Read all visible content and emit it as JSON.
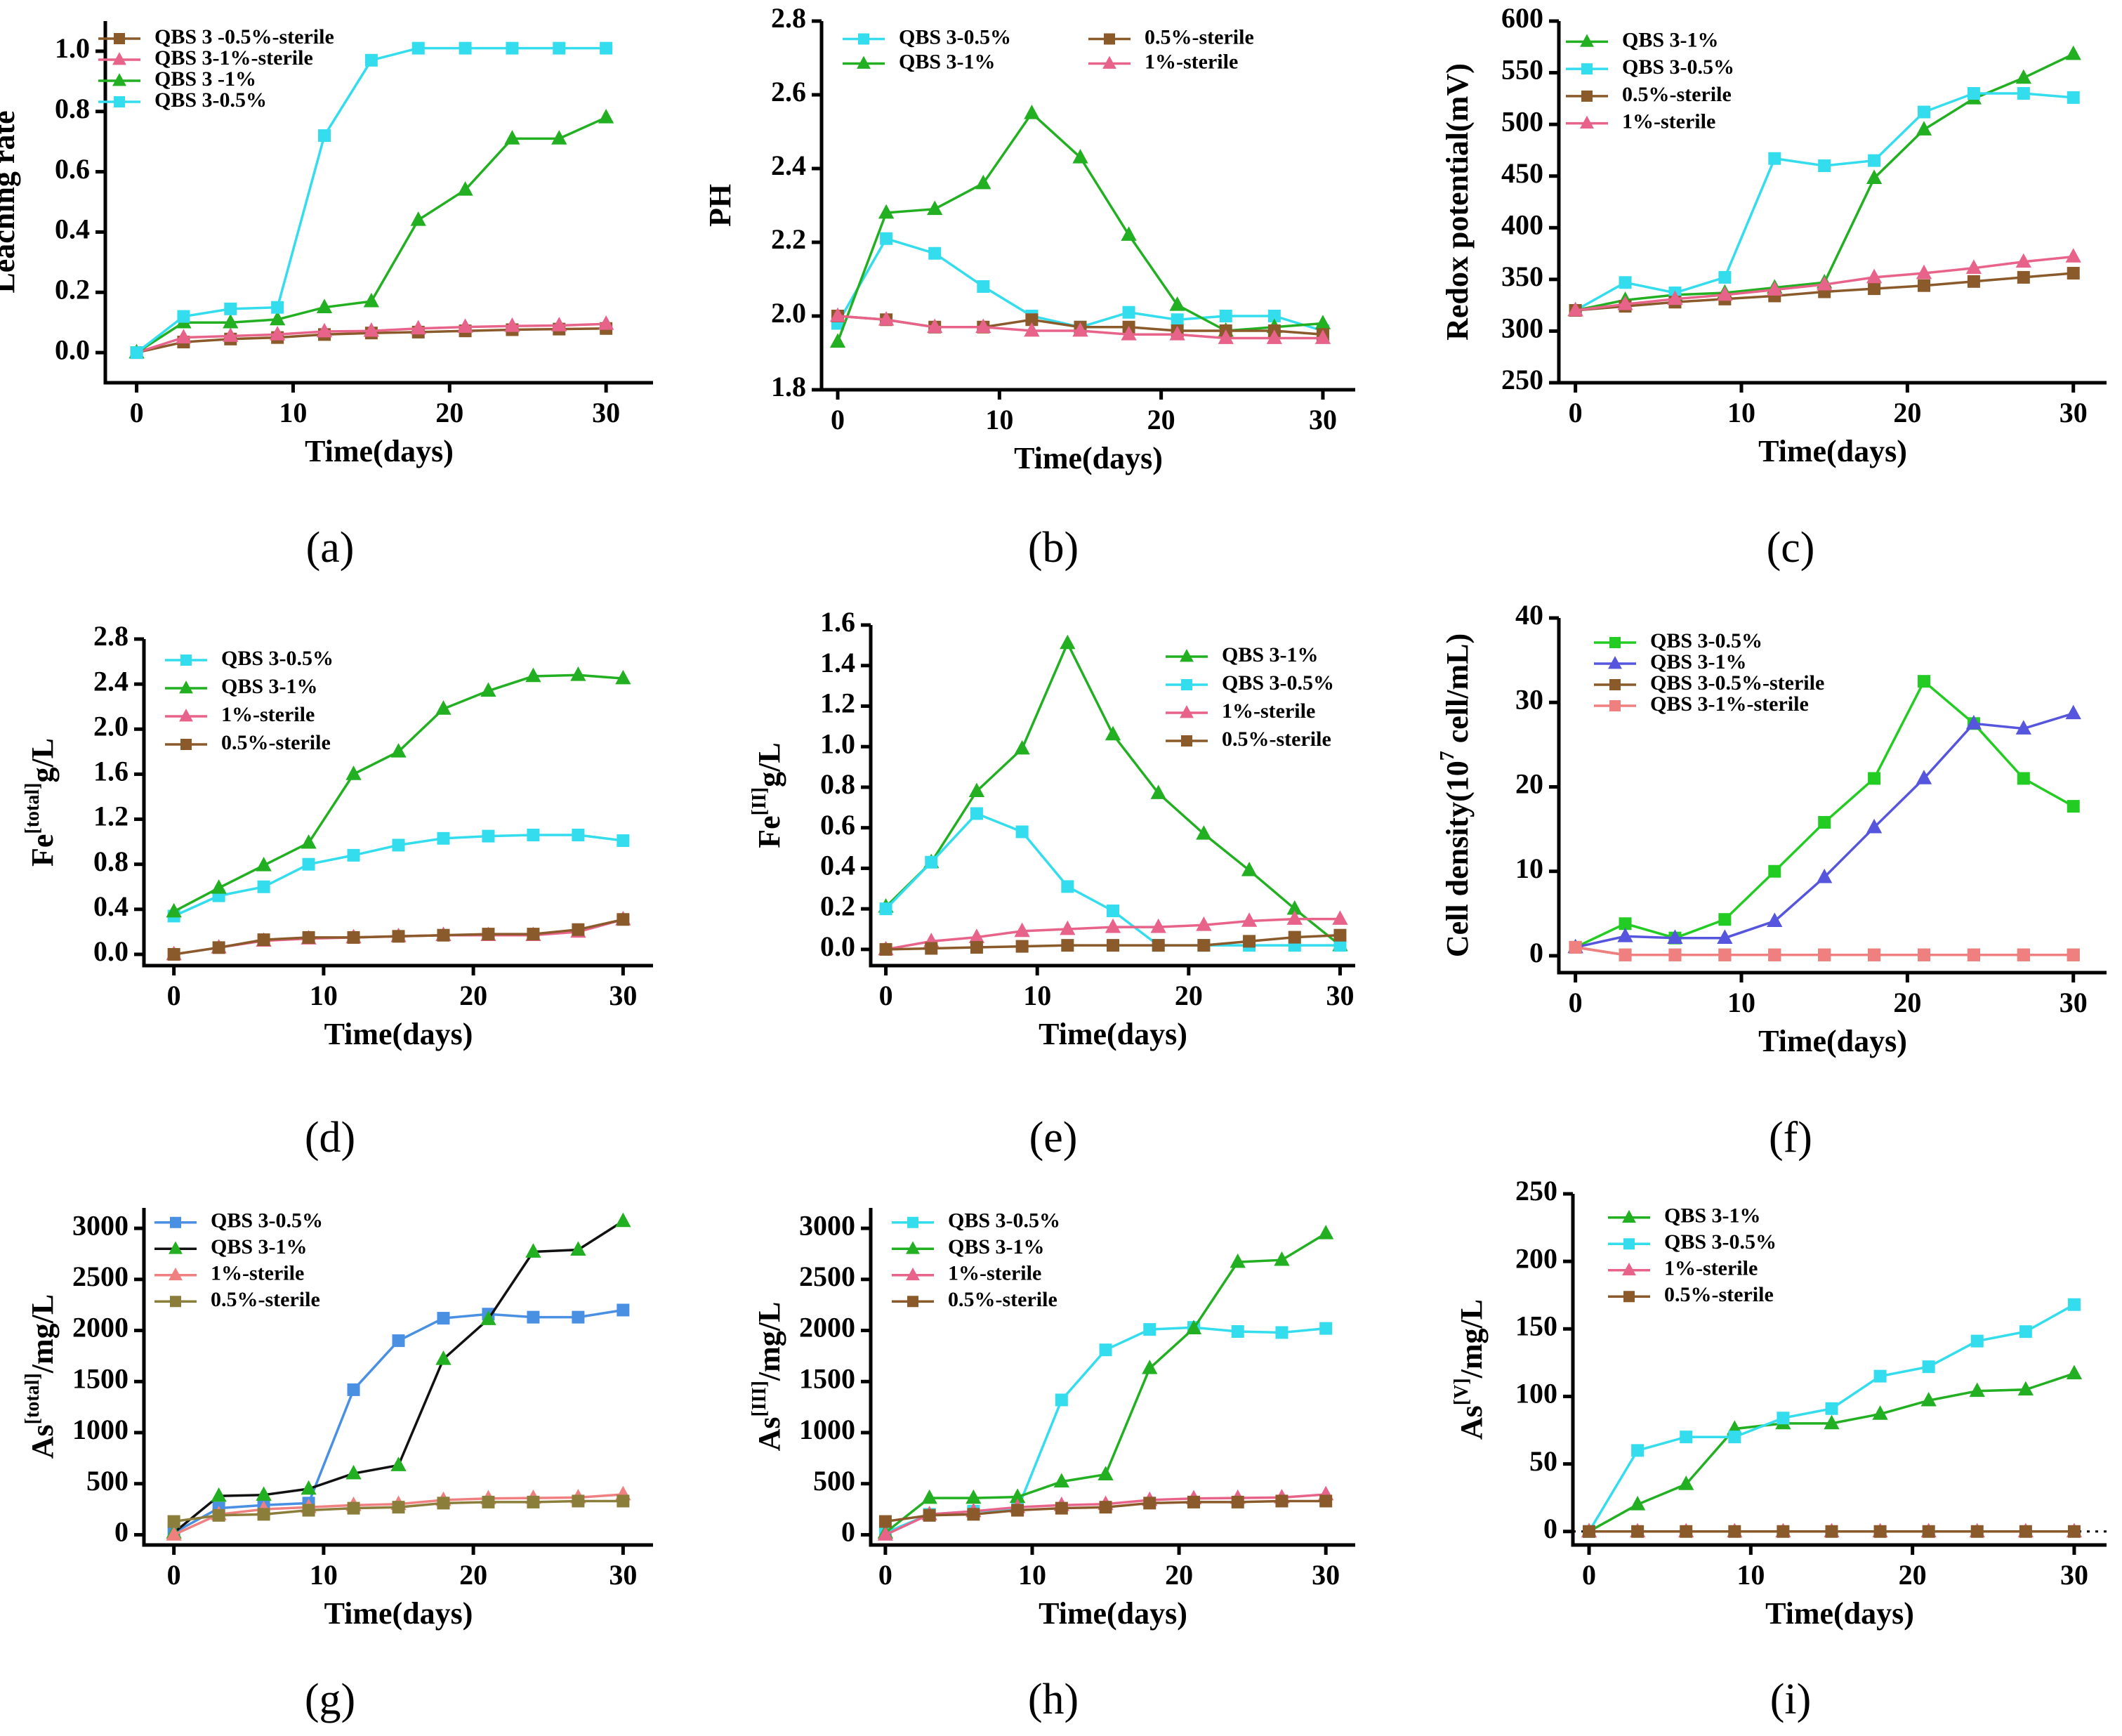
{
  "figure": {
    "panels": [
      {
        "label": "(a)",
        "x_title": "Time(days)",
        "y_title": "Leaching rate"
      },
      {
        "label": "(b)",
        "x_title": "Time(days)",
        "y_title": "PH"
      },
      {
        "label": "(c)",
        "x_title": "Time(days)",
        "y_title": "Redox potential(mV)"
      },
      {
        "label": "(d)",
        "x_title": "Time(days)",
        "y_title": "Fe[total]g/L"
      },
      {
        "label": "(e)",
        "x_title": "Time(days)",
        "y_title": "Fe[II]g/L"
      },
      {
        "label": "(f)",
        "x_title": "Time(days)",
        "y_title": "Cell density(10^7 cell/mL)"
      },
      {
        "label": "(g)",
        "x_title": "Time(days)",
        "y_title": "As[total]/mg/L"
      },
      {
        "label": "(h)",
        "x_title": "Time(days)",
        "y_title": "As[III]/mg/L"
      },
      {
        "label": "(i)",
        "x_title": "Time(days)",
        "y_title": "As[V]/mg/L"
      }
    ]
  },
  "chart_data": [
    {
      "type": "line",
      "panel": "a",
      "xlabel": "Time(days)",
      "ylabel": "Leaching rate",
      "xlim": [
        -2,
        33
      ],
      "xticks": [
        0,
        10,
        20,
        30
      ],
      "ylim": [
        -0.1,
        1.1
      ],
      "yticks": [
        0.0,
        0.2,
        0.4,
        0.6,
        0.8,
        1.0
      ],
      "ytick_format": 1,
      "legend_placement": "top-left",
      "x": [
        0,
        3,
        6,
        9,
        12,
        15,
        18,
        21,
        24,
        27,
        30
      ],
      "series": [
        {
          "name": "QBS 3 -0.5%-sterile",
          "color": "#8B5A2B",
          "marker": "square",
          "values": [
            0,
            0.035,
            0.045,
            0.05,
            0.06,
            0.065,
            0.068,
            0.072,
            0.076,
            0.078,
            0.08
          ]
        },
        {
          "name": "QBS 3-1%-sterile",
          "color": "#E8638A",
          "marker": "triangle",
          "values": [
            0,
            0.05,
            0.055,
            0.06,
            0.07,
            0.072,
            0.08,
            0.085,
            0.088,
            0.09,
            0.095
          ]
        },
        {
          "name": "QBS 3 -1%",
          "color": "#22B022",
          "marker": "triangle",
          "values": [
            0,
            0.1,
            0.1,
            0.11,
            0.15,
            0.17,
            0.44,
            0.54,
            0.71,
            0.71,
            0.78
          ]
        },
        {
          "name": "QBS 3-0.5%",
          "color": "#33DDEE",
          "marker": "square",
          "values": [
            0,
            0.12,
            0.145,
            0.15,
            0.72,
            0.97,
            1.01,
            1.01,
            1.01,
            1.01,
            1.01
          ]
        }
      ]
    },
    {
      "type": "line",
      "panel": "b",
      "xlabel": "Time(days)",
      "ylabel": "PH",
      "xlim": [
        -1,
        32
      ],
      "xticks": [
        0,
        10,
        20,
        30
      ],
      "ylim": [
        1.8,
        2.8
      ],
      "yticks": [
        1.8,
        2.0,
        2.2,
        2.4,
        2.6,
        2.8
      ],
      "ytick_format": 1,
      "legend_placement": "top (two columns)",
      "x": [
        0,
        3,
        6,
        9,
        12,
        15,
        18,
        21,
        24,
        27,
        30
      ],
      "series": [
        {
          "name": "QBS 3-0.5%",
          "color": "#33DDEE",
          "marker": "square",
          "values": [
            1.98,
            2.21,
            2.17,
            2.08,
            2.0,
            1.97,
            2.01,
            1.99,
            2.0,
            2.0,
            1.96
          ]
        },
        {
          "name": "QBS 3-1%",
          "color": "#22B022",
          "marker": "triangle",
          "values": [
            1.93,
            2.28,
            2.29,
            2.36,
            2.55,
            2.43,
            2.22,
            2.03,
            1.96,
            1.97,
            1.98
          ]
        },
        {
          "name": "0.5%-sterile",
          "color": "#8B5A2B",
          "marker": "square",
          "values": [
            2.0,
            1.99,
            1.97,
            1.97,
            1.99,
            1.97,
            1.97,
            1.96,
            1.96,
            1.96,
            1.95
          ]
        },
        {
          "name": "1%-sterile",
          "color": "#E8638A",
          "marker": "triangle",
          "values": [
            2.0,
            1.99,
            1.97,
            1.97,
            1.96,
            1.96,
            1.95,
            1.95,
            1.94,
            1.94,
            1.94
          ]
        }
      ]
    },
    {
      "type": "line",
      "panel": "c",
      "xlabel": "Time(days)",
      "ylabel": "Redox potential(mV)",
      "xlim": [
        -1,
        32
      ],
      "xticks": [
        0,
        10,
        20,
        30
      ],
      "ylim": [
        250,
        600
      ],
      "yticks": [
        250,
        300,
        350,
        400,
        450,
        500,
        550,
        600
      ],
      "ytick_format": 0,
      "legend_placement": "top-left",
      "x": [
        0,
        3,
        6,
        9,
        12,
        15,
        18,
        21,
        24,
        27,
        30
      ],
      "series": [
        {
          "name": "QBS 3-1%",
          "color": "#22B022",
          "marker": "triangle",
          "values": [
            320,
            330,
            335,
            337,
            342,
            347,
            448,
            495,
            525,
            545,
            568
          ]
        },
        {
          "name": "QBS 3-0.5%",
          "color": "#33DDEE",
          "marker": "square",
          "values": [
            320,
            347,
            337,
            352,
            467,
            460,
            465,
            512,
            530,
            530,
            526
          ]
        },
        {
          "name": "0.5%-sterile",
          "color": "#8B5A2B",
          "marker": "square",
          "values": [
            320,
            324,
            328,
            331,
            334,
            338,
            341,
            344,
            348,
            352,
            356
          ]
        },
        {
          "name": "1%-sterile",
          "color": "#E8638A",
          "marker": "triangle",
          "values": [
            320,
            326,
            331,
            335,
            340,
            345,
            352,
            356,
            361,
            367,
            372
          ]
        }
      ]
    },
    {
      "type": "line",
      "panel": "d",
      "xlabel": "Time(days)",
      "ylabel": "Fe[total]g/L",
      "xlim": [
        -2,
        32
      ],
      "xticks": [
        0,
        10,
        20,
        30
      ],
      "ylim": [
        -0.1,
        2.8
      ],
      "yticks": [
        0.0,
        0.4,
        0.8,
        1.2,
        1.6,
        2.0,
        2.4,
        2.8
      ],
      "ytick_format": 1,
      "legend_placement": "top-left",
      "x": [
        0,
        3,
        6,
        9,
        12,
        15,
        18,
        21,
        24,
        27,
        30
      ],
      "series": [
        {
          "name": "QBS 3-0.5%",
          "color": "#33DDEE",
          "marker": "square",
          "values": [
            0.34,
            0.52,
            0.6,
            0.8,
            0.88,
            0.97,
            1.03,
            1.05,
            1.06,
            1.06,
            1.01
          ]
        },
        {
          "name": "QBS 3-1%",
          "color": "#22B022",
          "marker": "triangle",
          "values": [
            0.38,
            0.59,
            0.79,
            0.99,
            1.6,
            1.8,
            2.18,
            2.34,
            2.47,
            2.48,
            2.45
          ]
        },
        {
          "name": "1%-sterile",
          "color": "#E8638A",
          "marker": "triangle",
          "values": [
            0.0,
            0.06,
            0.12,
            0.14,
            0.15,
            0.16,
            0.17,
            0.17,
            0.17,
            0.2,
            0.31
          ]
        },
        {
          "name": "0.5%-sterile",
          "color": "#8B5A2B",
          "marker": "square",
          "values": [
            0.0,
            0.06,
            0.13,
            0.15,
            0.15,
            0.16,
            0.17,
            0.18,
            0.18,
            0.22,
            0.31
          ]
        }
      ]
    },
    {
      "type": "line",
      "panel": "e",
      "xlabel": "Time(days)",
      "ylabel": "Fe[II]g/L",
      "xlim": [
        -1,
        31
      ],
      "xticks": [
        0,
        10,
        20,
        30
      ],
      "ylim": [
        -0.08,
        1.6
      ],
      "yticks": [
        0.0,
        0.2,
        0.4,
        0.6,
        0.8,
        1.0,
        1.2,
        1.4,
        1.6
      ],
      "ytick_format": 1,
      "legend_placement": "top-right",
      "x": [
        0,
        3,
        6,
        9,
        12,
        15,
        18,
        21,
        24,
        27,
        30
      ],
      "series": [
        {
          "name": "QBS 3-1%",
          "color": "#22B022",
          "marker": "triangle",
          "values": [
            0.21,
            0.43,
            0.78,
            0.99,
            1.51,
            1.06,
            0.77,
            0.57,
            0.39,
            0.2,
            0.02
          ]
        },
        {
          "name": "QBS 3-0.5%",
          "color": "#33DDEE",
          "marker": "square",
          "values": [
            0.2,
            0.43,
            0.67,
            0.58,
            0.31,
            0.19,
            0.02,
            0.02,
            0.02,
            0.02,
            0.02
          ]
        },
        {
          "name": "1%-sterile",
          "color": "#E8638A",
          "marker": "triangle",
          "values": [
            0.0,
            0.04,
            0.06,
            0.09,
            0.1,
            0.11,
            0.11,
            0.12,
            0.14,
            0.15,
            0.15
          ]
        },
        {
          "name": "0.5%-sterile",
          "color": "#8B5A2B",
          "marker": "square",
          "values": [
            0.0,
            0.005,
            0.01,
            0.015,
            0.02,
            0.02,
            0.02,
            0.02,
            0.04,
            0.06,
            0.07
          ]
        }
      ]
    },
    {
      "type": "line",
      "panel": "f",
      "xlabel": "Time(days)",
      "ylabel": "Cell density(10^7 cell/mL)",
      "xlim": [
        -1,
        32
      ],
      "xticks": [
        0,
        10,
        20,
        30
      ],
      "ylim": [
        -2,
        40
      ],
      "yticks": [
        0,
        10,
        20,
        30,
        40
      ],
      "ytick_format": 0,
      "legend_placement": "top-left",
      "x": [
        0,
        3,
        6,
        9,
        12,
        15,
        18,
        21,
        24,
        27,
        30
      ],
      "series": [
        {
          "name": "QBS 3-0.5%",
          "color": "#22CC22",
          "marker": "square",
          "values": [
            1,
            3.8,
            2.1,
            4.3,
            10,
            15.8,
            21,
            32.5,
            27.5,
            21,
            17.7
          ]
        },
        {
          "name": "QBS 3-1%",
          "color": "#5555DD",
          "marker": "triangle",
          "values": [
            1,
            2.3,
            2.1,
            2.1,
            4.1,
            9.3,
            15.2,
            21,
            27.5,
            26.9,
            28.7
          ]
        },
        {
          "name": "QBS 3-0.5%-sterile",
          "color": "#8B5A2B",
          "marker": "square",
          "values": [
            1,
            0.1,
            0.1,
            0.1,
            0.1,
            0.1,
            0.1,
            0.1,
            0.1,
            0.1,
            0.1
          ]
        },
        {
          "name": "QBS 3-1%-sterile",
          "color": "#F08080",
          "marker": "square",
          "values": [
            1,
            0.1,
            0.1,
            0.1,
            0.1,
            0.1,
            0.1,
            0.1,
            0.1,
            0.1,
            0.1
          ]
        }
      ]
    },
    {
      "type": "line",
      "panel": "g",
      "xlabel": "Time(days)",
      "ylabel": "As[total]/mg/L",
      "xlim": [
        -2,
        32
      ],
      "xticks": [
        0,
        10,
        20,
        30
      ],
      "ylim": [
        -100,
        3200
      ],
      "yticks": [
        0,
        500,
        1000,
        1500,
        2000,
        2500,
        3000
      ],
      "ytick_format": 0,
      "legend_placement": "top-left",
      "x": [
        0,
        3,
        6,
        9,
        12,
        15,
        18,
        21,
        24,
        27,
        30
      ],
      "series": [
        {
          "name": "QBS 3-0.5%",
          "color": "#4A90E2",
          "marker": "square",
          "values": [
            20,
            260,
            290,
            310,
            1420,
            1900,
            2120,
            2160,
            2130,
            2130,
            2200
          ]
        },
        {
          "name": "QBS 3-1%",
          "color": "#111111",
          "line_color": "#111111",
          "marker_color": "#22B022",
          "marker": "triangle",
          "values": [
            20,
            380,
            390,
            450,
            600,
            680,
            1720,
            2110,
            2770,
            2790,
            3070
          ]
        },
        {
          "name": "1%-sterile",
          "color": "#F08080",
          "marker": "triangle",
          "values": [
            0,
            200,
            250,
            270,
            290,
            300,
            340,
            355,
            360,
            365,
            395
          ]
        },
        {
          "name": "0.5%-sterile",
          "color": "#8B7D3A",
          "marker": "square",
          "values": [
            130,
            190,
            200,
            240,
            260,
            270,
            310,
            320,
            320,
            330,
            330
          ]
        }
      ]
    },
    {
      "type": "line",
      "panel": "h",
      "xlabel": "Time(days)",
      "ylabel": "As[III]/mg/L",
      "xlim": [
        -1,
        32
      ],
      "xticks": [
        0,
        10,
        20,
        30
      ],
      "ylim": [
        -100,
        3200
      ],
      "yticks": [
        0,
        500,
        1000,
        1500,
        2000,
        2500,
        3000
      ],
      "ytick_format": 0,
      "legend_placement": "top-left",
      "x": [
        0,
        3,
        6,
        9,
        12,
        15,
        18,
        21,
        24,
        27,
        30
      ],
      "series": [
        {
          "name": "QBS 3-0.5%",
          "color": "#33DDEE",
          "marker": "square",
          "values": [
            20,
            200,
            230,
            250,
            1320,
            1810,
            2010,
            2030,
            1990,
            1980,
            2020
          ]
        },
        {
          "name": "QBS 3-1%",
          "color": "#22B022",
          "marker": "triangle",
          "values": [
            20,
            360,
            360,
            370,
            520,
            590,
            1630,
            2020,
            2670,
            2690,
            2950
          ]
        },
        {
          "name": "1%-sterile",
          "color": "#E8638A",
          "marker": "triangle",
          "values": [
            0,
            200,
            230,
            270,
            290,
            300,
            340,
            355,
            360,
            365,
            395
          ]
        },
        {
          "name": "0.5%-sterile",
          "color": "#8B5A2B",
          "marker": "square",
          "values": [
            130,
            190,
            200,
            240,
            260,
            270,
            310,
            320,
            320,
            330,
            330
          ]
        }
      ]
    },
    {
      "type": "line",
      "panel": "i",
      "xlabel": "Time(days)",
      "ylabel": "As[V]/mg/L",
      "xlim": [
        -1,
        32
      ],
      "xticks": [
        0,
        10,
        20,
        30
      ],
      "ylim": [
        -10,
        250
      ],
      "yticks": [
        0,
        50,
        100,
        150,
        200,
        250
      ],
      "ytick_format": 0,
      "legend_placement": "top-left",
      "reference_line": {
        "y": 0,
        "style": "dotted"
      },
      "x": [
        0,
        3,
        6,
        9,
        12,
        15,
        18,
        21,
        24,
        27,
        30
      ],
      "series": [
        {
          "name": "QBS 3-1%",
          "color": "#22B022",
          "marker": "triangle",
          "values": [
            0,
            20,
            35,
            76,
            80,
            80,
            87,
            97,
            104,
            105,
            117
          ]
        },
        {
          "name": "QBS 3-0.5%",
          "color": "#33DDEE",
          "marker": "square",
          "values": [
            0,
            60,
            70,
            70,
            84,
            91,
            115,
            122,
            141,
            148,
            168
          ]
        },
        {
          "name": "1%-sterile",
          "color": "#E8638A",
          "marker": "triangle",
          "values": [
            0,
            0,
            0,
            0,
            0,
            0,
            0,
            0,
            0,
            0,
            0
          ]
        },
        {
          "name": "0.5%-sterile",
          "color": "#8B5A2B",
          "marker": "square",
          "values": [
            0,
            0,
            0,
            0,
            0,
            0,
            0,
            0,
            0,
            0,
            0
          ]
        }
      ]
    }
  ]
}
